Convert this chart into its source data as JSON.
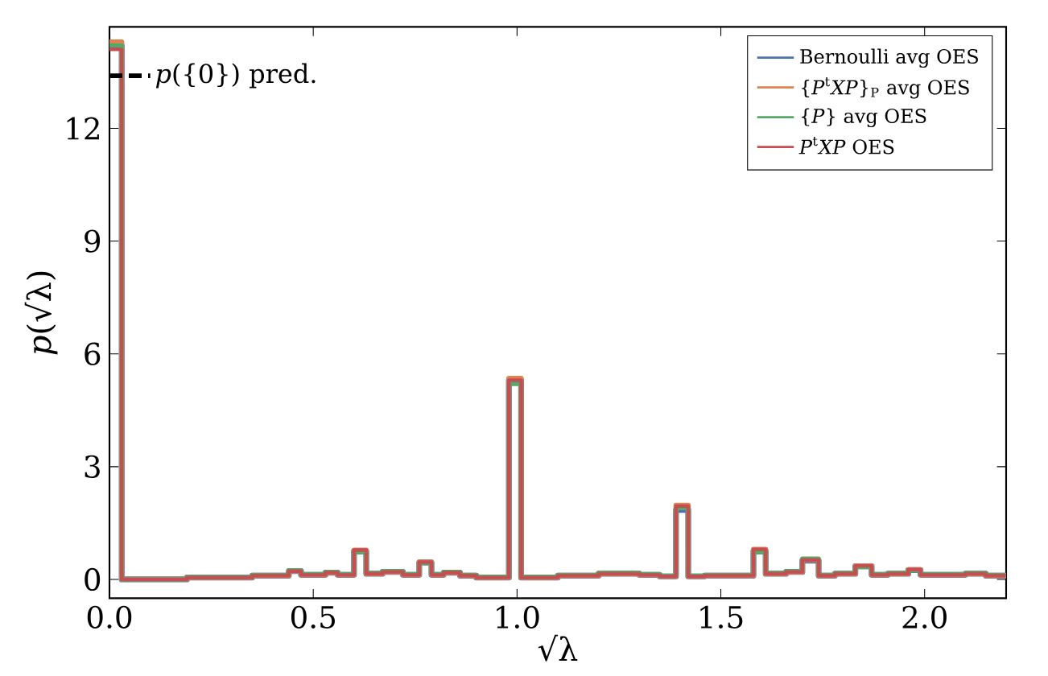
{
  "chart_data": {
    "type": "step",
    "xlabel": "√λ",
    "ylabel": "*p*(√λ)",
    "xlim": [
      0,
      2.2
    ],
    "ylim": [
      -0.5,
      14.7
    ],
    "xticks": [
      {
        "value": 0,
        "label": "0.0"
      },
      {
        "value": 0.5,
        "label": "0.5"
      },
      {
        "value": 1,
        "label": "1.0"
      },
      {
        "value": 1.5,
        "label": "1.5"
      },
      {
        "value": 2,
        "label": "2.0"
      }
    ],
    "yticks": [
      0,
      3,
      6,
      9,
      12
    ],
    "grid": false,
    "legend": "top right",
    "series": [
      {
        "name": "Bernoulli avg OES",
        "color": "#4c72b0",
        "x": [
          0,
          0.03,
          0.19,
          0.35,
          0.44,
          0.47,
          0.53,
          0.56,
          0.6,
          0.63,
          0.67,
          0.72,
          0.76,
          0.79,
          0.82,
          0.86,
          0.9,
          0.98,
          1.01,
          1.1,
          1.2,
          1.3,
          1.35,
          1.39,
          1.42,
          1.46,
          1.58,
          1.61,
          1.66,
          1.7,
          1.74,
          1.78,
          1.83,
          1.87,
          1.91,
          1.96,
          1.99,
          2.05,
          2.1,
          2.15,
          2.2
        ],
        "values": [
          14.2,
          0,
          0.05,
          0.1,
          0.22,
          0.12,
          0.18,
          0.12,
          0.75,
          0.15,
          0.2,
          0.12,
          0.45,
          0.12,
          0.18,
          0.1,
          0.05,
          5.3,
          0.05,
          0.1,
          0.15,
          0.12,
          0.08,
          1.85,
          0.08,
          0.1,
          0.75,
          0.15,
          0.2,
          0.5,
          0.1,
          0.15,
          0.35,
          0.12,
          0.15,
          0.25,
          0.12,
          0.12,
          0.15,
          0.1,
          0.1
        ]
      },
      {
        "name": "{*P*$^{t}$*XP*}$_{P}$ avg OES",
        "color": "#dd8452",
        "x": [
          0,
          0.03,
          0.19,
          0.35,
          0.44,
          0.47,
          0.53,
          0.56,
          0.6,
          0.63,
          0.67,
          0.72,
          0.76,
          0.79,
          0.82,
          0.86,
          0.9,
          0.98,
          1.01,
          1.1,
          1.2,
          1.3,
          1.35,
          1.39,
          1.42,
          1.46,
          1.58,
          1.61,
          1.66,
          1.7,
          1.74,
          1.78,
          1.83,
          1.87,
          1.91,
          1.96,
          1.99,
          2.05,
          2.1,
          2.15,
          2.2
        ],
        "values": [
          14.3,
          0,
          0.05,
          0.1,
          0.22,
          0.12,
          0.18,
          0.12,
          0.78,
          0.15,
          0.2,
          0.12,
          0.46,
          0.12,
          0.18,
          0.1,
          0.05,
          5.35,
          0.05,
          0.1,
          0.15,
          0.12,
          0.08,
          1.97,
          0.08,
          0.1,
          0.8,
          0.15,
          0.2,
          0.52,
          0.1,
          0.15,
          0.36,
          0.12,
          0.15,
          0.26,
          0.12,
          0.12,
          0.15,
          0.1,
          0.1
        ]
      },
      {
        "name": "{*P*} avg OES",
        "color": "#55a868",
        "x": [
          0,
          0.03,
          0.19,
          0.35,
          0.44,
          0.47,
          0.53,
          0.56,
          0.6,
          0.63,
          0.67,
          0.72,
          0.76,
          0.79,
          0.82,
          0.86,
          0.9,
          0.98,
          1.01,
          1.1,
          1.2,
          1.3,
          1.35,
          1.39,
          1.42,
          1.46,
          1.58,
          1.61,
          1.66,
          1.7,
          1.74,
          1.78,
          1.83,
          1.87,
          1.91,
          1.96,
          1.99,
          2.05,
          2.1,
          2.15,
          2.2
        ],
        "values": [
          14.2,
          0,
          0.06,
          0.12,
          0.24,
          0.14,
          0.2,
          0.14,
          0.72,
          0.17,
          0.22,
          0.14,
          0.43,
          0.14,
          0.2,
          0.12,
          0.07,
          5.2,
          0.07,
          0.12,
          0.18,
          0.14,
          0.1,
          1.9,
          0.1,
          0.12,
          0.72,
          0.17,
          0.22,
          0.55,
          0.12,
          0.17,
          0.33,
          0.14,
          0.17,
          0.24,
          0.14,
          0.14,
          0.17,
          0.12,
          0.12
        ]
      },
      {
        "name": "*P*$^{t}$*XP* OES",
        "color": "#c44e52",
        "x": [
          0,
          0.03,
          0.19,
          0.35,
          0.44,
          0.47,
          0.53,
          0.56,
          0.6,
          0.63,
          0.67,
          0.72,
          0.76,
          0.79,
          0.82,
          0.86,
          0.9,
          0.98,
          1.01,
          1.1,
          1.2,
          1.3,
          1.35,
          1.39,
          1.42,
          1.46,
          1.58,
          1.61,
          1.66,
          1.7,
          1.74,
          1.78,
          1.83,
          1.87,
          1.91,
          1.96,
          1.99,
          2.05,
          2.1,
          2.15,
          2.2
        ],
        "values": [
          14.1,
          0,
          0.05,
          0.1,
          0.22,
          0.12,
          0.18,
          0.12,
          0.78,
          0.15,
          0.2,
          0.12,
          0.46,
          0.12,
          0.18,
          0.1,
          0.05,
          5.3,
          0.05,
          0.1,
          0.15,
          0.12,
          0.08,
          1.95,
          0.08,
          0.1,
          0.8,
          0.15,
          0.2,
          0.52,
          0.1,
          0.15,
          0.36,
          0.12,
          0.15,
          0.26,
          0.12,
          0.12,
          0.15,
          0.1,
          0.1
        ]
      },
      {
        "name": "*p*({0}) pred.",
        "type": "line",
        "line_style": "dashed",
        "color": "#000000",
        "x": [
          0,
          0.1
        ],
        "values": [
          13.4,
          13.4
        ]
      }
    ]
  }
}
